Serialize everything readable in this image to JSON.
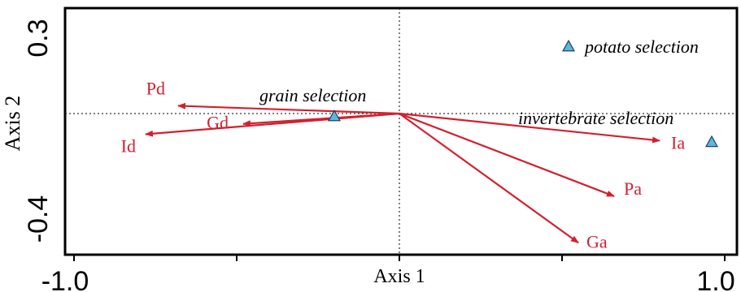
{
  "chart_data": {
    "type": "scatter",
    "title": "",
    "xlabel": "Axis 1",
    "ylabel": "Axis 2",
    "xlim": [
      -1.0,
      1.0
    ],
    "ylim": [
      -0.4,
      0.3
    ],
    "x_tick_labels": [
      {
        "value": -1.0,
        "label": "-1.0"
      },
      {
        "value": 1.0,
        "label": "1.0"
      }
    ],
    "y_tick_labels": [
      {
        "value": 0.3,
        "label": "0.3"
      },
      {
        "value": -0.4,
        "label": "-0.4"
      }
    ],
    "reference_lines": {
      "x": 0,
      "y": 0,
      "style": "dotted"
    },
    "vectors": [
      {
        "label": "Pd",
        "x": -0.68,
        "y": 0.03
      },
      {
        "label": "Gd",
        "x": -0.48,
        "y": -0.04
      },
      {
        "label": "Id",
        "x": -0.78,
        "y": -0.08
      },
      {
        "label": "Ia",
        "x": 0.8,
        "y": -0.105
      },
      {
        "label": "Pa",
        "x": 0.66,
        "y": -0.32
      },
      {
        "label": "Ga",
        "x": 0.55,
        "y": -0.5
      }
    ],
    "points": [
      {
        "label": "potato selection",
        "x": 0.52,
        "y": 0.26
      },
      {
        "label": "grain selection",
        "x": -0.2,
        "y": -0.01
      },
      {
        "label": "invertebrate selection",
        "x": 0.96,
        "y": -0.11
      }
    ],
    "colors": {
      "vector": "#d2202f",
      "point_fill": "#5bb8d8",
      "point_stroke": "#1f3f73",
      "axis": "#000000"
    }
  }
}
